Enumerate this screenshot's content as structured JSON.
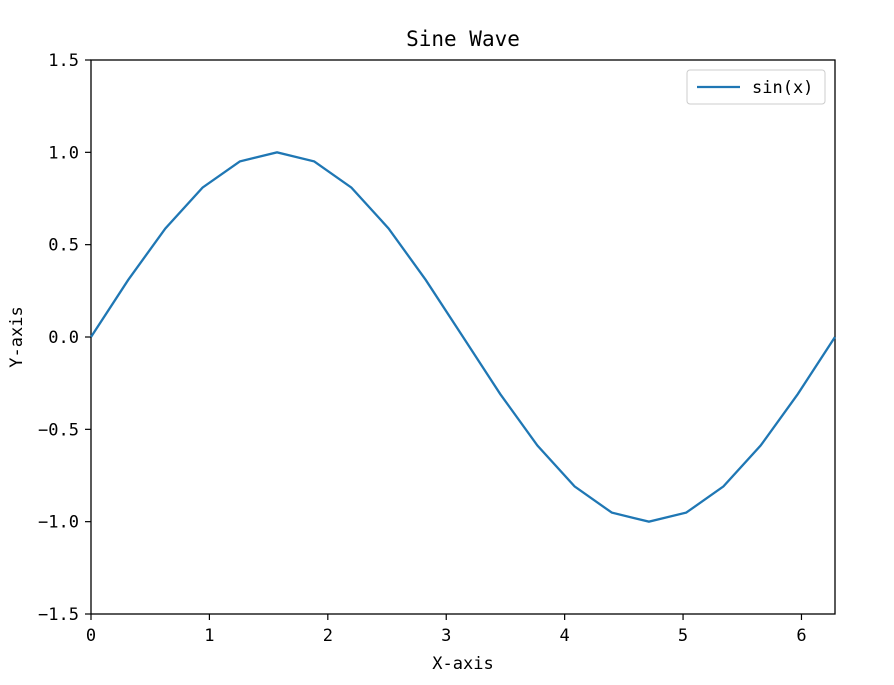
{
  "chart_data": {
    "type": "line",
    "title": "Sine Wave",
    "xlabel": "X-axis",
    "ylabel": "Y-axis",
    "xlim": [
      0,
      6.283185307
    ],
    "ylim": [
      -1.5,
      1.5
    ],
    "xticks": [
      0,
      1,
      2,
      3,
      4,
      5,
      6
    ],
    "xtick_labels": [
      "0",
      "1",
      "2",
      "3",
      "4",
      "5",
      "6"
    ],
    "yticks": [
      -1.5,
      -1.0,
      -0.5,
      0.0,
      0.5,
      1.0,
      1.5
    ],
    "ytick_labels": [
      "−1.5",
      "−1.0",
      "−0.5",
      "0.0",
      "0.5",
      "1.0",
      "1.5"
    ],
    "grid": false,
    "legend": {
      "position": "top-right"
    },
    "series": [
      {
        "name": "sin(x)",
        "color": "#1f77b4",
        "x": [
          0,
          0.314,
          0.628,
          0.942,
          1.257,
          1.571,
          1.885,
          2.199,
          2.513,
          2.827,
          3.142,
          3.456,
          3.77,
          4.084,
          4.398,
          4.712,
          5.027,
          5.341,
          5.655,
          5.969,
          6.283
        ],
        "y": [
          0,
          0.309,
          0.588,
          0.809,
          0.951,
          1.0,
          0.951,
          0.809,
          0.588,
          0.309,
          0,
          -0.309,
          -0.588,
          -0.809,
          -0.951,
          -1.0,
          -0.951,
          -0.809,
          -0.588,
          -0.309,
          0
        ]
      }
    ]
  }
}
